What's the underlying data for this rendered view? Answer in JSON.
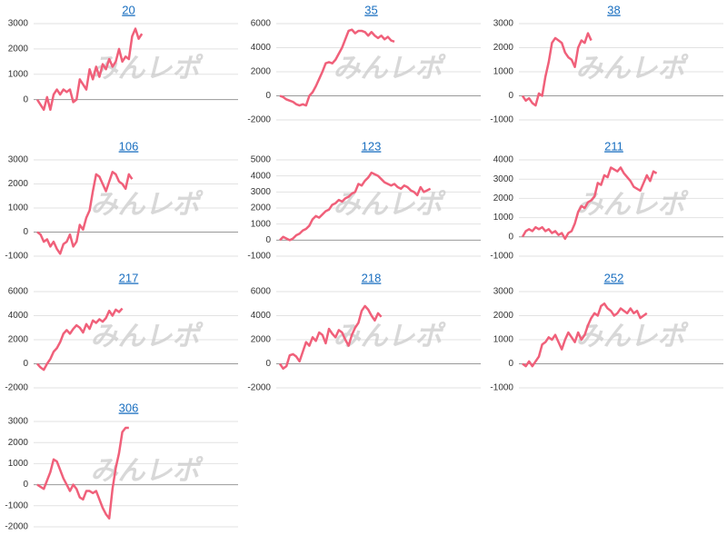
{
  "chart_data": [
    {
      "type": "line",
      "title": "20",
      "watermark": "みんレポ",
      "color": "#f0607a",
      "ylim": [
        -800,
        3000
      ],
      "yticks": [
        0,
        1000,
        2000,
        3000
      ],
      "grid": true,
      "values": [
        0,
        -200,
        -400,
        100,
        -400,
        200,
        400,
        200,
        400,
        300,
        400,
        -100,
        0,
        800,
        600,
        400,
        1200,
        800,
        1300,
        900,
        1400,
        1200,
        1600,
        1300,
        1500,
        2000,
        1500,
        1700,
        1600,
        2500,
        2800,
        2400,
        2600
      ]
    },
    {
      "type": "line",
      "title": "35",
      "watermark": "みんレポ",
      "color": "#f0607a",
      "ylim": [
        -2000,
        6000
      ],
      "yticks": [
        -2000,
        0,
        2000,
        4000,
        6000
      ],
      "grid": true,
      "values": [
        0,
        -100,
        -300,
        -400,
        -500,
        -700,
        -800,
        -700,
        -800,
        0,
        300,
        800,
        1400,
        2000,
        2700,
        2800,
        2700,
        3000,
        3500,
        4000,
        4700,
        5400,
        5500,
        5200,
        5400,
        5400,
        5300,
        5000,
        5300,
        5000,
        4800,
        5000,
        4700,
        4900,
        4600,
        4500
      ]
    },
    {
      "type": "line",
      "title": "38",
      "watermark": "みんレポ",
      "color": "#f0607a",
      "ylim": [
        -1000,
        3000
      ],
      "yticks": [
        -1000,
        0,
        1000,
        2000,
        3000
      ],
      "grid": true,
      "values": [
        0,
        -200,
        -100,
        -300,
        -400,
        100,
        0,
        800,
        1400,
        2200,
        2400,
        2300,
        2200,
        1800,
        1600,
        1500,
        1200,
        2000,
        2300,
        2200,
        2600,
        2300
      ]
    },
    {
      "type": "line",
      "title": "106",
      "watermark": "みんレポ",
      "color": "#f0607a",
      "ylim": [
        -1000,
        3000
      ],
      "yticks": [
        -1000,
        0,
        1000,
        2000,
        3000
      ],
      "grid": true,
      "values": [
        0,
        -100,
        -400,
        -300,
        -600,
        -400,
        -700,
        -900,
        -500,
        -400,
        -100,
        -600,
        -400,
        300,
        100,
        600,
        900,
        1700,
        2400,
        2300,
        2000,
        1700,
        2100,
        2500,
        2400,
        2100,
        2000,
        1800,
        2400,
        2200
      ]
    },
    {
      "type": "line",
      "title": "123",
      "watermark": "みんレポ",
      "color": "#f0607a",
      "ylim": [
        -1000,
        5000
      ],
      "yticks": [
        -1000,
        0,
        1000,
        2000,
        3000,
        4000,
        5000
      ],
      "grid": true,
      "values": [
        0,
        200,
        100,
        0,
        100,
        300,
        400,
        600,
        700,
        900,
        1300,
        1500,
        1400,
        1600,
        1800,
        1900,
        2200,
        2300,
        2500,
        2400,
        2600,
        2700,
        2900,
        3000,
        3500,
        3400,
        3700,
        3900,
        4200,
        4100,
        4000,
        3800,
        3600,
        3500,
        3400,
        3500,
        3300,
        3200,
        3400,
        3300,
        3100,
        3000,
        2800,
        3300,
        3000,
        3100,
        3200
      ]
    },
    {
      "type": "line",
      "title": "211",
      "watermark": "みんレポ",
      "color": "#f0607a",
      "ylim": [
        -1000,
        4000
      ],
      "yticks": [
        -1000,
        0,
        1000,
        2000,
        3000,
        4000
      ],
      "grid": true,
      "values": [
        0,
        300,
        400,
        300,
        500,
        400,
        500,
        300,
        400,
        200,
        300,
        100,
        200,
        -100,
        200,
        300,
        700,
        1300,
        1600,
        1500,
        1800,
        1900,
        2100,
        2800,
        2700,
        3200,
        3100,
        3600,
        3500,
        3400,
        3600,
        3300,
        3100,
        2900,
        2600,
        2500,
        2400,
        2800,
        3200,
        2900,
        3400,
        3300
      ]
    },
    {
      "type": "line",
      "title": "217",
      "watermark": "みんレポ",
      "color": "#f0607a",
      "ylim": [
        -2000,
        6000
      ],
      "yticks": [
        -2000,
        0,
        2000,
        4000,
        6000
      ],
      "grid": true,
      "values": [
        0,
        -300,
        -500,
        0,
        400,
        1000,
        1300,
        1800,
        2500,
        2800,
        2500,
        2900,
        3200,
        3000,
        2600,
        3300,
        2900,
        3600,
        3400,
        3700,
        3500,
        3800,
        4400,
        4000,
        4500,
        4300,
        4600
      ]
    },
    {
      "type": "line",
      "title": "218",
      "watermark": "みんレポ",
      "color": "#f0607a",
      "ylim": [
        -2000,
        6000
      ],
      "yticks": [
        -2000,
        0,
        2000,
        4000,
        6000
      ],
      "grid": true,
      "values": [
        0,
        -400,
        -200,
        700,
        800,
        600,
        200,
        1000,
        1800,
        1500,
        2200,
        1900,
        2600,
        2400,
        1700,
        2900,
        2500,
        2200,
        2800,
        2600,
        2000,
        1500,
        2400,
        3000,
        3400,
        4400,
        4800,
        4500,
        4000,
        3600,
        4200,
        3900
      ]
    },
    {
      "type": "line",
      "title": "252",
      "watermark": "みんレポ",
      "color": "#f0607a",
      "ylim": [
        -1000,
        3000
      ],
      "yticks": [
        -1000,
        0,
        1000,
        2000,
        3000
      ],
      "grid": true,
      "values": [
        0,
        -100,
        100,
        -100,
        100,
        300,
        800,
        900,
        1100,
        1000,
        1200,
        900,
        600,
        1000,
        1300,
        1100,
        900,
        1300,
        1000,
        1200,
        1600,
        1900,
        2100,
        2000,
        2400,
        2500,
        2300,
        2200,
        2000,
        2100,
        2300,
        2200,
        2100,
        2300,
        2100,
        2200,
        1900,
        2000,
        2100
      ]
    },
    {
      "type": "line",
      "title": "306",
      "watermark": "みんレポ",
      "color": "#f0607a",
      "ylim": [
        -2000,
        3000
      ],
      "yticks": [
        -2000,
        -1000,
        0,
        1000,
        2000,
        3000
      ],
      "grid": true,
      "values": [
        0,
        -100,
        -200,
        200,
        600,
        1200,
        1100,
        700,
        300,
        0,
        -300,
        0,
        -200,
        -600,
        -700,
        -300,
        -300,
        -400,
        -300,
        -700,
        -1100,
        -1400,
        -1600,
        -200,
        800,
        1500,
        2500,
        2700,
        2700
      ]
    }
  ]
}
